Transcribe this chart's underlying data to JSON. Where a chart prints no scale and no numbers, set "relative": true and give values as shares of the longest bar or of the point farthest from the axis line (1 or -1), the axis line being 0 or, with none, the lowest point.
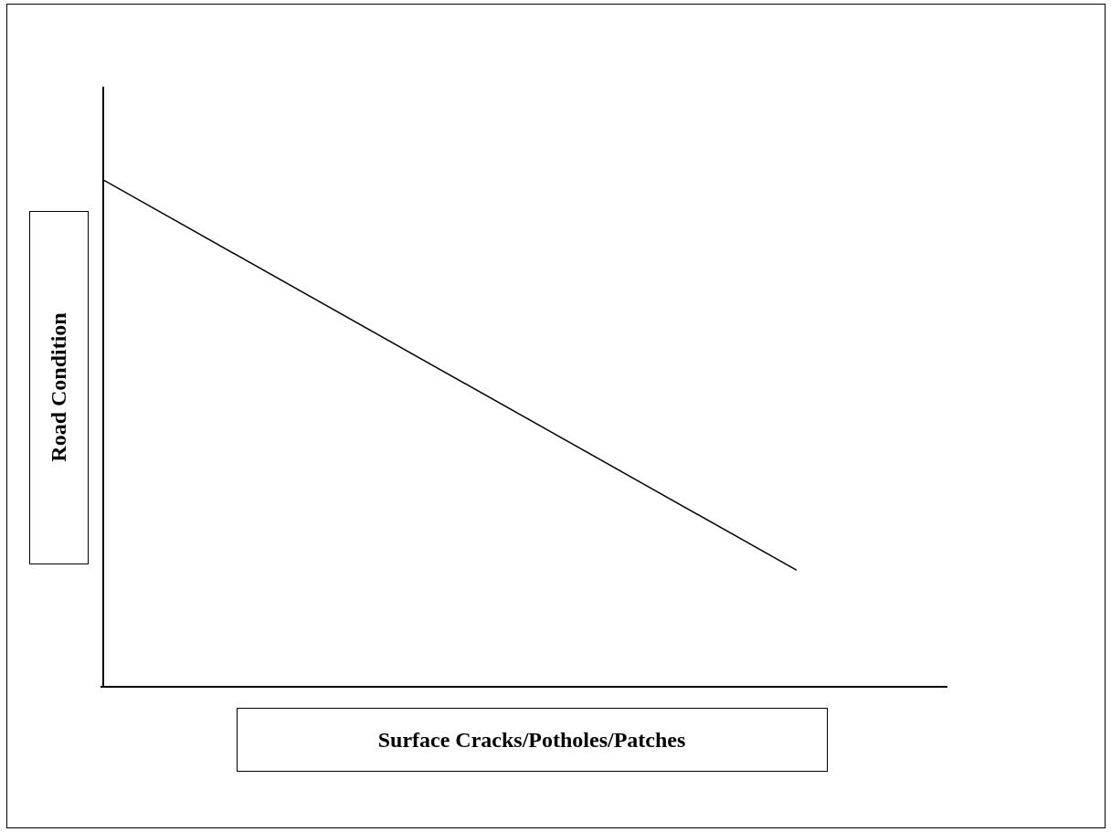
{
  "chart_data": {
    "type": "line",
    "xlabel": "Surface Cracks/Potholes/Patches",
    "ylabel": "Road Condition",
    "categories": [
      null,
      null
    ],
    "series": [
      {
        "color": "#000000",
        "values": [
          1,
          0.23
        ]
      }
    ],
    "relative": true
  }
}
